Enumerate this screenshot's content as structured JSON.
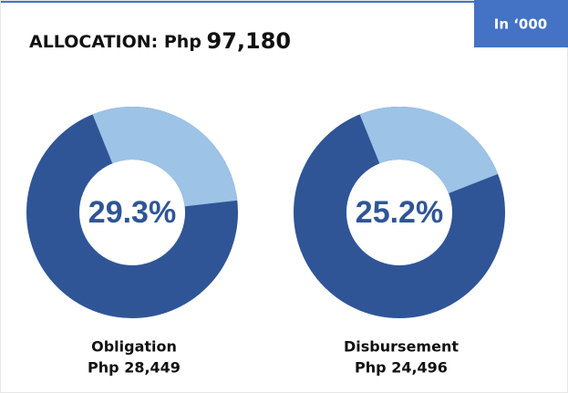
{
  "header": {
    "title_prefix": "ALLOCATION: Php",
    "title_amount": "97,180",
    "unit_badge": "In ‘000"
  },
  "chart_data": [
    {
      "type": "donut",
      "name": "Obligation",
      "amount": "Php 28,449",
      "values": [
        29.3
      ],
      "value_labels": [
        "29.3%"
      ],
      "color": "#9dc3e6",
      "base_color": "#2f5597"
    },
    {
      "type": "donut",
      "name": "Disbursement",
      "amount": "Php 24,496",
      "values": [
        25.2
      ],
      "value_labels": [
        "25.2%"
      ],
      "color": "#9dc3e6",
      "base_color": "#2f5597"
    }
  ]
}
